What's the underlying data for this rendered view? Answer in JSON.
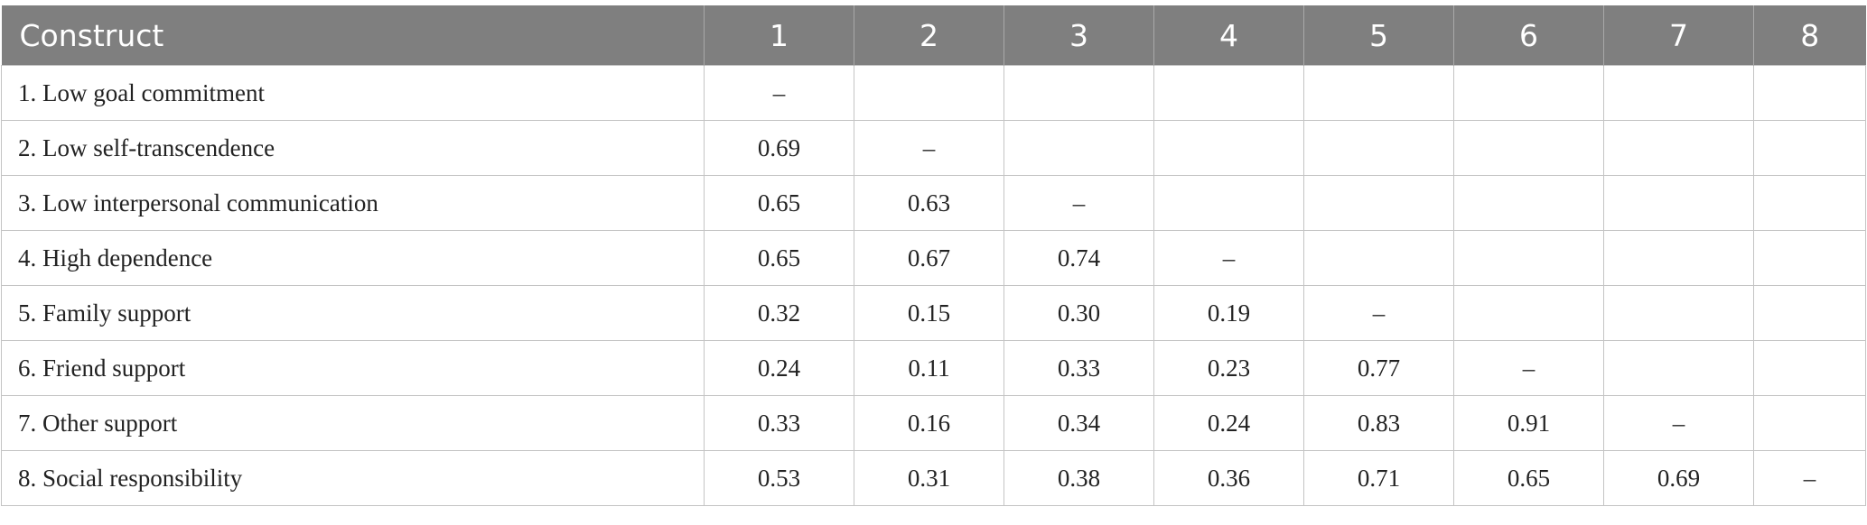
{
  "table": {
    "header": [
      "Construct",
      "1",
      "2",
      "3",
      "4",
      "5",
      "6",
      "7",
      "8"
    ],
    "rows": [
      [
        "1. Low goal commitment",
        "–"
      ],
      [
        "2. Low self-transcendence",
        "0.69",
        "–"
      ],
      [
        "3. Low interpersonal communication",
        "0.65",
        "0.63",
        "–"
      ],
      [
        "4. High dependence",
        "0.65",
        "0.67",
        "0.74",
        "–"
      ],
      [
        "5. Family support",
        "0.32",
        "0.15",
        "0.30",
        "0.19",
        "–"
      ],
      [
        "6. Friend support",
        "0.24",
        "0.11",
        "0.33",
        "0.23",
        "0.77",
        "–"
      ],
      [
        "7. Other support",
        "0.33",
        "0.16",
        "0.34",
        "0.24",
        "0.83",
        "0.91",
        "–"
      ],
      [
        "8. Social responsibility",
        "0.53",
        "0.31",
        "0.38",
        "0.36",
        "0.71",
        "0.65",
        "0.69",
        "–"
      ]
    ]
  }
}
